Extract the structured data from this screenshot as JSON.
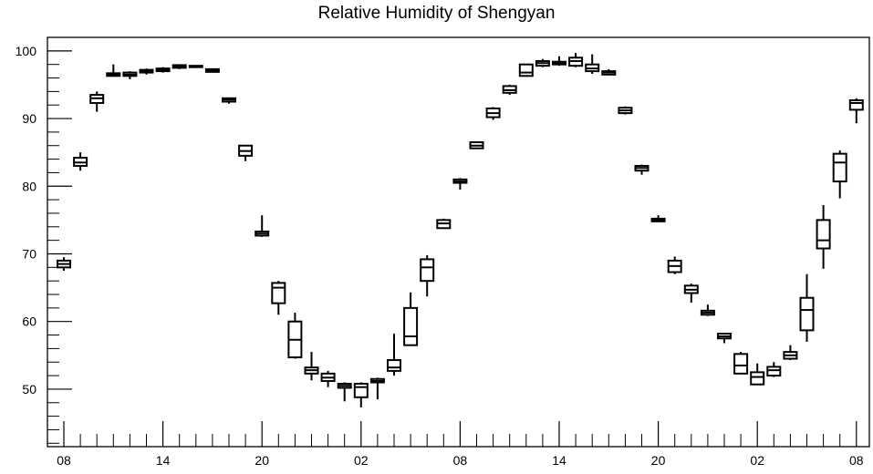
{
  "chart_data": {
    "type": "box",
    "title": "Relative Humidity of Shengyan",
    "xlabel": "",
    "ylabel": "",
    "ylim": [
      41.5,
      102
    ],
    "y_ticks": [
      50,
      60,
      70,
      80,
      90,
      100
    ],
    "x_tick_labels": [
      "08",
      "14",
      "20",
      "02",
      "08",
      "14",
      "20",
      "02",
      "08"
    ],
    "x_tick_hours": [
      0,
      6,
      12,
      18,
      24,
      30,
      36,
      42,
      48
    ],
    "grid": false,
    "legend": "none",
    "colors": {
      "box": "#000000",
      "axis": "#000000",
      "background": "#ffffff"
    },
    "boxes": [
      {
        "hour": 0,
        "q1": 68.0,
        "median": 68.5,
        "q3": 69.0,
        "whisker_low": 67.5,
        "whisker_high": 69.5
      },
      {
        "hour": 1,
        "q1": 83.0,
        "median": 83.5,
        "q3": 84.2,
        "whisker_low": 82.3,
        "whisker_high": 85.0
      },
      {
        "hour": 2,
        "q1": 92.3,
        "median": 93.0,
        "q3": 93.5,
        "whisker_low": 91.0,
        "whisker_high": 94.0
      },
      {
        "hour": 3,
        "q1": 96.3,
        "median": 96.5,
        "q3": 96.7,
        "whisker_low": 96.2,
        "whisker_high": 98.0
      },
      {
        "hour": 4,
        "q1": 96.3,
        "median": 96.5,
        "q3": 96.8,
        "whisker_low": 95.8,
        "whisker_high": 97.0
      },
      {
        "hour": 5,
        "q1": 96.8,
        "median": 97.0,
        "q3": 97.2,
        "whisker_low": 96.5,
        "whisker_high": 97.4
      },
      {
        "hour": 6,
        "q1": 97.0,
        "median": 97.2,
        "q3": 97.4,
        "whisker_low": 96.8,
        "whisker_high": 97.6
      },
      {
        "hour": 7,
        "q1": 97.5,
        "median": 97.7,
        "q3": 97.9,
        "whisker_low": 97.3,
        "whisker_high": 98.0
      },
      {
        "hour": 8,
        "q1": 97.6,
        "median": 97.7,
        "q3": 97.8,
        "whisker_low": 97.6,
        "whisker_high": 97.8
      },
      {
        "hour": 9,
        "q1": 96.9,
        "median": 97.1,
        "q3": 97.3,
        "whisker_low": 96.8,
        "whisker_high": 97.4
      },
      {
        "hour": 10,
        "q1": 92.5,
        "median": 92.8,
        "q3": 93.0,
        "whisker_low": 92.2,
        "whisker_high": 93.0
      },
      {
        "hour": 11,
        "q1": 84.5,
        "median": 85.2,
        "q3": 86.0,
        "whisker_low": 83.7,
        "whisker_high": 86.0
      },
      {
        "hour": 12,
        "q1": 72.7,
        "median": 73.0,
        "q3": 73.3,
        "whisker_low": 72.5,
        "whisker_high": 75.7
      },
      {
        "hour": 13,
        "q1": 62.7,
        "median": 65.0,
        "q3": 65.7,
        "whisker_low": 61.0,
        "whisker_high": 66.0
      },
      {
        "hour": 14,
        "q1": 54.7,
        "median": 57.3,
        "q3": 60.0,
        "whisker_low": 54.5,
        "whisker_high": 61.3
      },
      {
        "hour": 15,
        "q1": 52.3,
        "median": 52.8,
        "q3": 53.2,
        "whisker_low": 51.3,
        "whisker_high": 55.5
      },
      {
        "hour": 16,
        "q1": 51.2,
        "median": 51.7,
        "q3": 52.3,
        "whisker_low": 50.3,
        "whisker_high": 52.7
      },
      {
        "hour": 17,
        "q1": 50.2,
        "median": 50.5,
        "q3": 50.8,
        "whisker_low": 48.2,
        "whisker_high": 51.0
      },
      {
        "hour": 18,
        "q1": 48.8,
        "median": 50.3,
        "q3": 50.8,
        "whisker_low": 47.3,
        "whisker_high": 51.0
      },
      {
        "hour": 19,
        "q1": 51.0,
        "median": 51.2,
        "q3": 51.5,
        "whisker_low": 48.5,
        "whisker_high": 51.7
      },
      {
        "hour": 20,
        "q1": 52.7,
        "median": 53.2,
        "q3": 54.3,
        "whisker_low": 52.0,
        "whisker_high": 58.2
      },
      {
        "hour": 21,
        "q1": 56.5,
        "median": 57.8,
        "q3": 62.0,
        "whisker_low": 56.5,
        "whisker_high": 64.3
      },
      {
        "hour": 22,
        "q1": 66.0,
        "median": 68.0,
        "q3": 69.2,
        "whisker_low": 63.7,
        "whisker_high": 69.8
      },
      {
        "hour": 23,
        "q1": 73.8,
        "median": 74.5,
        "q3": 75.0,
        "whisker_low": 73.7,
        "whisker_high": 75.2
      },
      {
        "hour": 24,
        "q1": 80.5,
        "median": 80.7,
        "q3": 81.0,
        "whisker_low": 79.5,
        "whisker_high": 81.2
      },
      {
        "hour": 25,
        "q1": 85.6,
        "median": 86.0,
        "q3": 86.5,
        "whisker_low": 85.5,
        "whisker_high": 86.6
      },
      {
        "hour": 26,
        "q1": 90.2,
        "median": 90.8,
        "q3": 91.5,
        "whisker_low": 89.8,
        "whisker_high": 91.7
      },
      {
        "hour": 27,
        "q1": 93.8,
        "median": 94.2,
        "q3": 94.8,
        "whisker_low": 93.5,
        "whisker_high": 95.0
      },
      {
        "hour": 28,
        "q1": 96.3,
        "median": 96.8,
        "q3": 98.0,
        "whisker_low": 96.3,
        "whisker_high": 98.0
      },
      {
        "hour": 29,
        "q1": 97.8,
        "median": 98.2,
        "q3": 98.5,
        "whisker_low": 97.6,
        "whisker_high": 98.8
      },
      {
        "hour": 30,
        "q1": 98.0,
        "median": 98.2,
        "q3": 98.4,
        "whisker_low": 97.8,
        "whisker_high": 99.2
      },
      {
        "hour": 31,
        "q1": 97.8,
        "median": 98.5,
        "q3": 99.0,
        "whisker_low": 97.6,
        "whisker_high": 99.7
      },
      {
        "hour": 32,
        "q1": 97.0,
        "median": 97.4,
        "q3": 98.0,
        "whisker_low": 96.6,
        "whisker_high": 99.5
      },
      {
        "hour": 33,
        "q1": 96.5,
        "median": 96.8,
        "q3": 97.0,
        "whisker_low": 96.4,
        "whisker_high": 97.3
      },
      {
        "hour": 34,
        "q1": 90.8,
        "median": 91.2,
        "q3": 91.6,
        "whisker_low": 90.6,
        "whisker_high": 91.8
      },
      {
        "hour": 35,
        "q1": 82.3,
        "median": 82.7,
        "q3": 83.0,
        "whisker_low": 81.7,
        "whisker_high": 83.2
      },
      {
        "hour": 36,
        "q1": 74.8,
        "median": 75.0,
        "q3": 75.2,
        "whisker_low": 74.7,
        "whisker_high": 75.7
      },
      {
        "hour": 37,
        "q1": 67.3,
        "median": 68.2,
        "q3": 69.0,
        "whisker_low": 67.0,
        "whisker_high": 69.6
      },
      {
        "hour": 38,
        "q1": 64.2,
        "median": 64.7,
        "q3": 65.3,
        "whisker_low": 62.8,
        "whisker_high": 65.6
      },
      {
        "hour": 39,
        "q1": 61.0,
        "median": 61.3,
        "q3": 61.6,
        "whisker_low": 60.8,
        "whisker_high": 62.5
      },
      {
        "hour": 40,
        "q1": 57.5,
        "median": 57.8,
        "q3": 58.2,
        "whisker_low": 56.8,
        "whisker_high": 58.3
      },
      {
        "hour": 41,
        "q1": 52.3,
        "median": 53.5,
        "q3": 55.2,
        "whisker_low": 52.3,
        "whisker_high": 55.5
      },
      {
        "hour": 42,
        "q1": 50.7,
        "median": 51.8,
        "q3": 52.5,
        "whisker_low": 50.7,
        "whisker_high": 53.8
      },
      {
        "hour": 43,
        "q1": 52.0,
        "median": 52.8,
        "q3": 53.3,
        "whisker_low": 51.8,
        "whisker_high": 54.0
      },
      {
        "hour": 44,
        "q1": 54.5,
        "median": 55.0,
        "q3": 55.5,
        "whisker_low": 54.3,
        "whisker_high": 56.5
      },
      {
        "hour": 45,
        "q1": 58.7,
        "median": 61.7,
        "q3": 63.5,
        "whisker_low": 57.0,
        "whisker_high": 67.0
      },
      {
        "hour": 46,
        "q1": 70.8,
        "median": 72.0,
        "q3": 75.0,
        "whisker_low": 67.8,
        "whisker_high": 77.2
      },
      {
        "hour": 47,
        "q1": 80.7,
        "median": 83.5,
        "q3": 84.8,
        "whisker_low": 78.2,
        "whisker_high": 85.3
      },
      {
        "hour": 48,
        "q1": 91.3,
        "median": 92.3,
        "q3": 92.7,
        "whisker_low": 89.3,
        "whisker_high": 93.0
      }
    ]
  }
}
